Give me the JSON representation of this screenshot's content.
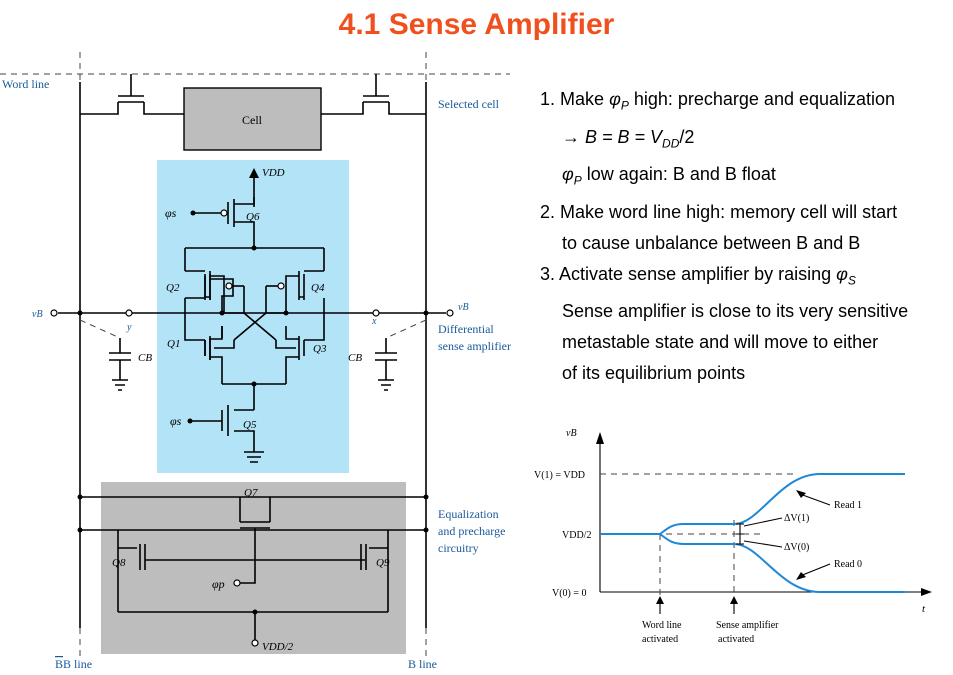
{
  "title": "4.1 Sense Amplifier",
  "circuit": {
    "word_line": "Word line",
    "cell": "Cell",
    "selected_cell": "Selected cell",
    "vdd": "VDD",
    "phi_s_bar": "φs",
    "q6": "Q6",
    "q2": "Q2",
    "q4": "Q4",
    "q1": "Q1",
    "q3": "Q3",
    "q5": "Q5",
    "phi_s": "φs",
    "vb_bar": "vB",
    "vb": "vB",
    "y": "y",
    "x": "x",
    "cb_bar": "CB",
    "cb": "CB",
    "differential": "Differential",
    "sense_amplifier": "sense amplifier",
    "q7": "Q7",
    "q8": "Q8",
    "q9": "Q9",
    "phi_p": "φp",
    "vdd_half": "VDD/2",
    "equalization": "Equalization",
    "and_precharge": "and precharge",
    "circuitry": "circuitry",
    "b_bar_line": "B line",
    "b_line": "B line"
  },
  "notes": {
    "n1_num": "1.",
    "n1_a": "Make",
    "n1_phi": "φ",
    "n1_sub": "P",
    "n1_b": "high: precharge and equalization",
    "n1_eq": "→ B = B = V",
    "n1_eq_sub": "DD",
    "n1_eq_tail": "/2",
    "n1_c_phi": "φ",
    "n1_c_sub": "P",
    "n1_c": "low again: B and B  float",
    "n2_num": "2.",
    "n2_a": "Make word line high: memory cell will start",
    "n2_b": "to cause unbalance between B and B",
    "n3_num": "3.",
    "n3_a": "Activate sense amplifier by raising",
    "n3_phi": "φ",
    "n3_sub": "S",
    "n3_b": "Sense amplifier is close to its very sensitive",
    "n3_c": "metastable state and will move to either",
    "n3_d": "of its equilibrium points"
  },
  "chart_data": {
    "type": "line",
    "ylabel": "vB",
    "xlabel": "t",
    "y_ticks": [
      "V(1) = VDD",
      "VDD/2",
      "V(0) = 0"
    ],
    "series": [
      {
        "name": "Read 1"
      },
      {
        "name": "Read 0"
      }
    ],
    "annotations": [
      "ΔV(1)",
      "ΔV(0)",
      "Word line",
      "activated",
      "Sense amplifier",
      "activated"
    ]
  },
  "colors": {
    "title": "#f0501e",
    "sense_box": "#b3e3f7",
    "precharge_box": "#bdbdbd",
    "curve": "#1e88d8"
  }
}
